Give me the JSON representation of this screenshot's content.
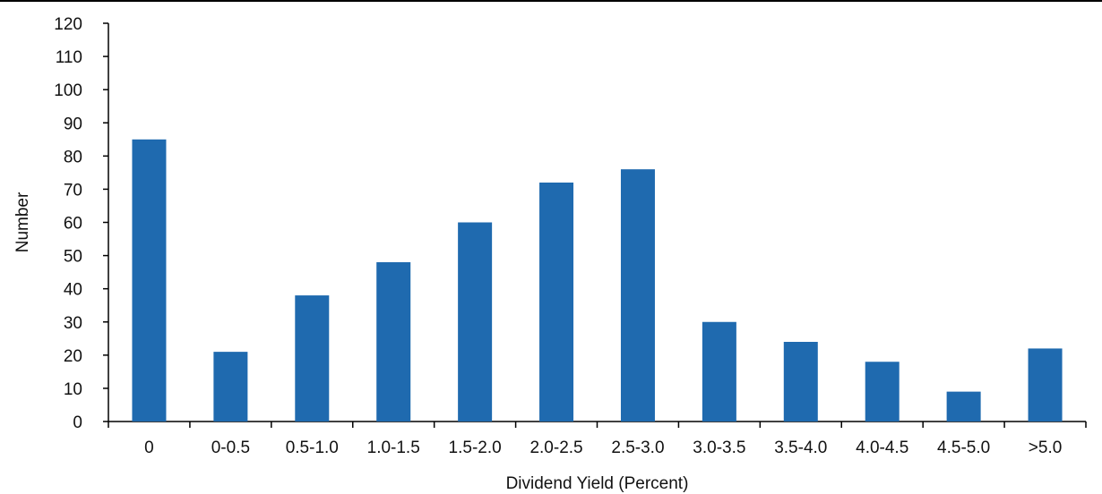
{
  "chart_data": {
    "type": "bar",
    "categories": [
      "0",
      "0-0.5",
      "0.5-1.0",
      "1.0-1.5",
      "1.5-2.0",
      "2.0-2.5",
      "2.5-3.0",
      "3.0-3.5",
      "3.5-4.0",
      "4.0-4.5",
      "4.5-5.0",
      ">5.0"
    ],
    "values": [
      85,
      21,
      38,
      48,
      60,
      72,
      76,
      30,
      24,
      18,
      9,
      22
    ],
    "xlabel": "Dividend Yield (Percent)",
    "ylabel": "Number",
    "ylim": [
      0,
      120
    ],
    "yticks": [
      0,
      10,
      20,
      30,
      40,
      50,
      60,
      70,
      80,
      90,
      100,
      110,
      120
    ],
    "grid": false,
    "colors": {
      "bar": "#1f6aaf",
      "axis": "#000000"
    }
  }
}
